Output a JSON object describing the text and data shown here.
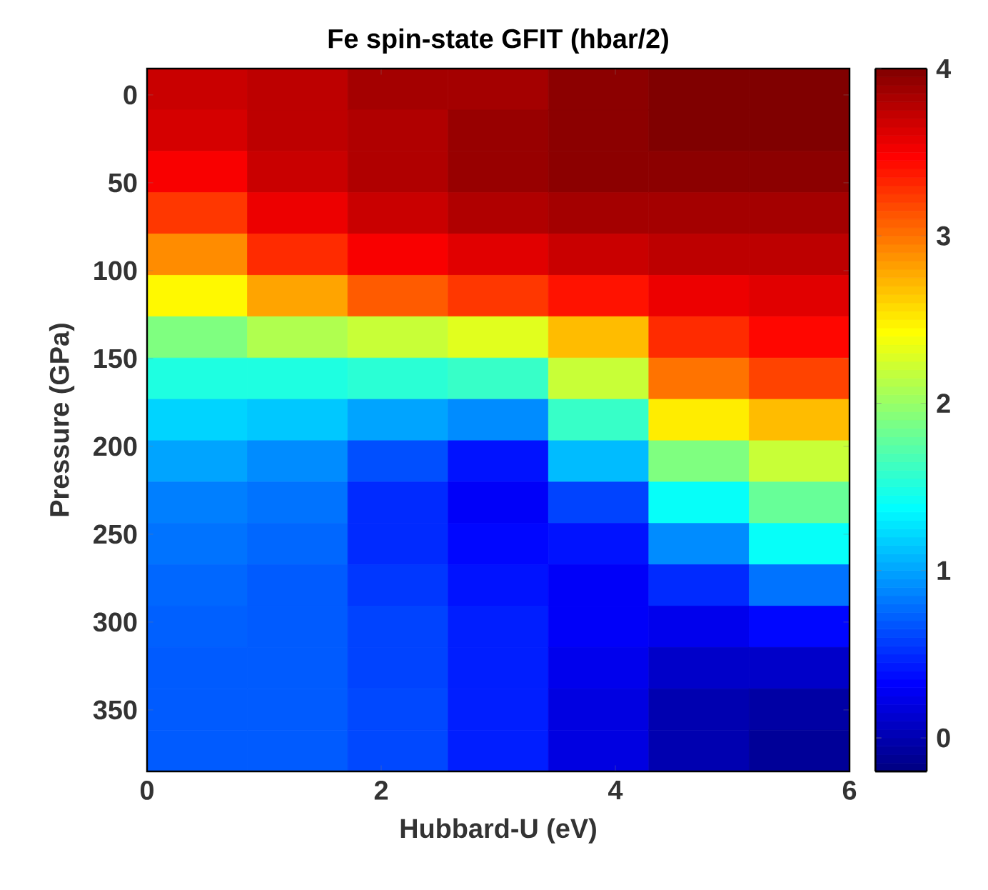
{
  "chart_data": {
    "type": "heatmap",
    "title": "Fe spin-state GFIT (hbar/2)",
    "xlabel": "Hubbard-U (eV)",
    "ylabel": "Pressure (GPa)",
    "xlim": [
      0,
      6
    ],
    "ylim": [
      385,
      -15
    ],
    "xticks": [
      0,
      2,
      4,
      6
    ],
    "yticks": [
      0,
      50,
      100,
      150,
      200,
      250,
      300,
      350
    ],
    "clim": [
      -0.2,
      4
    ],
    "cticks": [
      0,
      1,
      2,
      3,
      4
    ],
    "cells": [
      [
        3.7,
        3.75,
        3.85,
        3.85,
        3.95,
        4.0,
        4.0
      ],
      [
        3.65,
        3.75,
        3.8,
        3.9,
        3.95,
        4.0,
        4.0
      ],
      [
        3.5,
        3.7,
        3.8,
        3.9,
        3.95,
        3.95,
        3.95
      ],
      [
        3.25,
        3.55,
        3.7,
        3.8,
        3.85,
        3.85,
        3.85
      ],
      [
        2.9,
        3.3,
        3.5,
        3.6,
        3.7,
        3.75,
        3.75
      ],
      [
        2.45,
        2.8,
        3.1,
        3.25,
        3.4,
        3.55,
        3.6
      ],
      [
        1.9,
        2.1,
        2.2,
        2.3,
        2.7,
        3.3,
        3.45
      ],
      [
        1.5,
        1.5,
        1.55,
        1.6,
        2.2,
        3.0,
        3.2
      ],
      [
        1.2,
        1.15,
        1.0,
        0.9,
        1.6,
        2.5,
        2.7
      ],
      [
        1.0,
        0.9,
        0.65,
        0.4,
        1.1,
        1.9,
        2.2
      ],
      [
        0.85,
        0.8,
        0.5,
        0.3,
        0.6,
        1.4,
        1.8
      ],
      [
        0.8,
        0.75,
        0.5,
        0.35,
        0.4,
        0.9,
        1.4
      ],
      [
        0.75,
        0.7,
        0.55,
        0.4,
        0.3,
        0.5,
        0.8
      ],
      [
        0.72,
        0.7,
        0.6,
        0.45,
        0.3,
        0.25,
        0.35
      ],
      [
        0.7,
        0.7,
        0.6,
        0.45,
        0.25,
        0.1,
        0.1
      ],
      [
        0.7,
        0.7,
        0.62,
        0.45,
        0.2,
        0.0,
        -0.05
      ],
      [
        0.7,
        0.7,
        0.62,
        0.45,
        0.2,
        0.0,
        -0.1
      ]
    ]
  }
}
